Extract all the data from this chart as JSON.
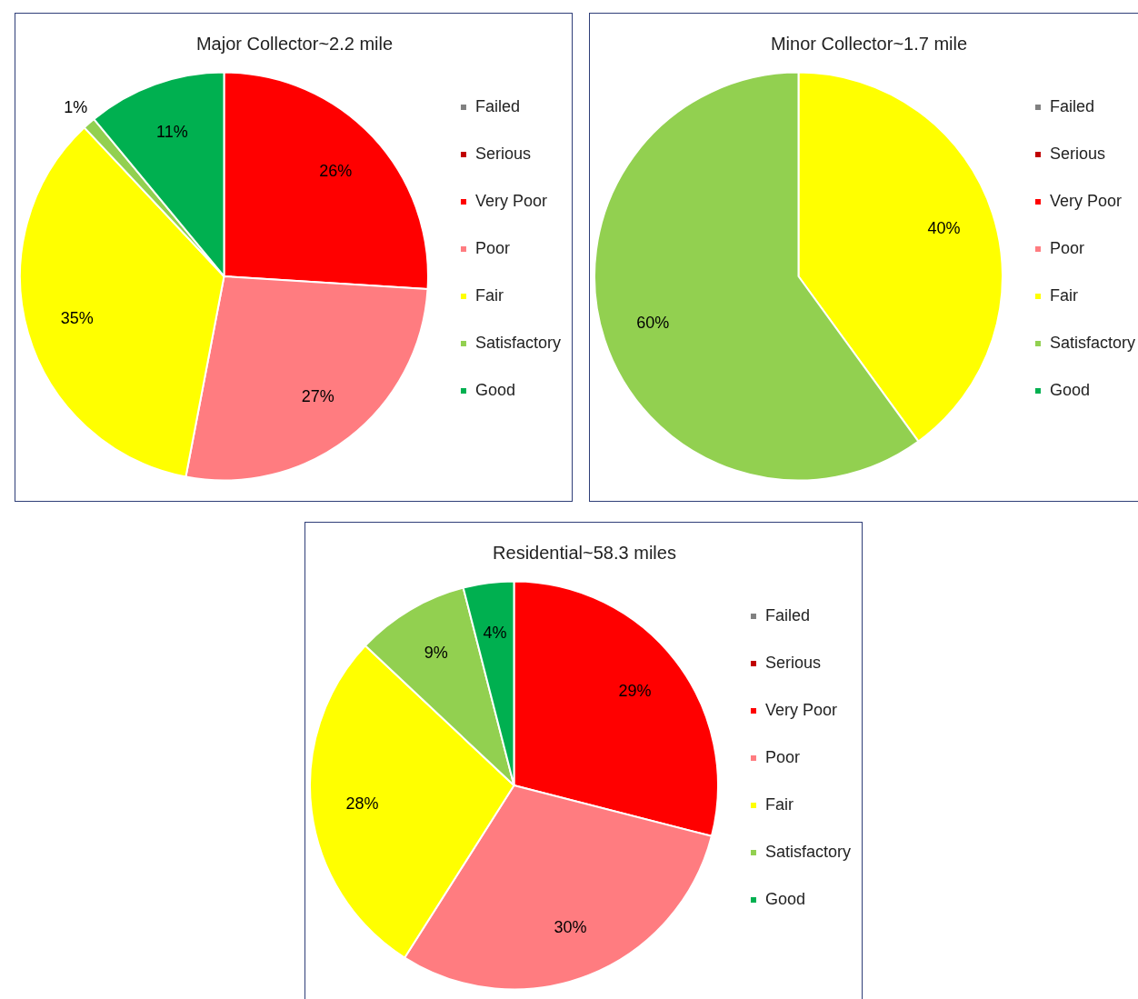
{
  "chart_data": [
    {
      "type": "pie",
      "title": "Major Collector~2.2 mile",
      "categories": [
        "Failed",
        "Serious",
        "Very Poor",
        "Poor",
        "Fair",
        "Satisfactory",
        "Good"
      ],
      "values": [
        0,
        0,
        26,
        27,
        35,
        1,
        11
      ],
      "colors": [
        "#808080",
        "#c00000",
        "#ff0000",
        "#ff7c80",
        "#ffff00",
        "#92d050",
        "#00b050"
      ],
      "value_labels": [
        null,
        null,
        "26%",
        "27%",
        "35%",
        "1%",
        "11%"
      ],
      "legend": "right"
    },
    {
      "type": "pie",
      "title": "Minor Collector~1.7 mile",
      "categories": [
        "Failed",
        "Serious",
        "Very Poor",
        "Poor",
        "Fair",
        "Satisfactory",
        "Good"
      ],
      "values": [
        0,
        0,
        0,
        0,
        40,
        60,
        0
      ],
      "colors": [
        "#808080",
        "#c00000",
        "#ff0000",
        "#ff7c80",
        "#ffff00",
        "#92d050",
        "#00b050"
      ],
      "value_labels": [
        null,
        null,
        null,
        null,
        "40%",
        "60%",
        null
      ],
      "legend": "right"
    },
    {
      "type": "pie",
      "title": "Residential~58.3 miles",
      "categories": [
        "Failed",
        "Serious",
        "Very Poor",
        "Poor",
        "Fair",
        "Satisfactory",
        "Good"
      ],
      "values": [
        0,
        0,
        29,
        30,
        28,
        9,
        4
      ],
      "colors": [
        "#808080",
        "#c00000",
        "#ff0000",
        "#ff7c80",
        "#ffff00",
        "#92d050",
        "#00b050"
      ],
      "value_labels": [
        null,
        null,
        "29%",
        "30%",
        "28%",
        "9%",
        "4%"
      ],
      "legend": "right"
    }
  ]
}
